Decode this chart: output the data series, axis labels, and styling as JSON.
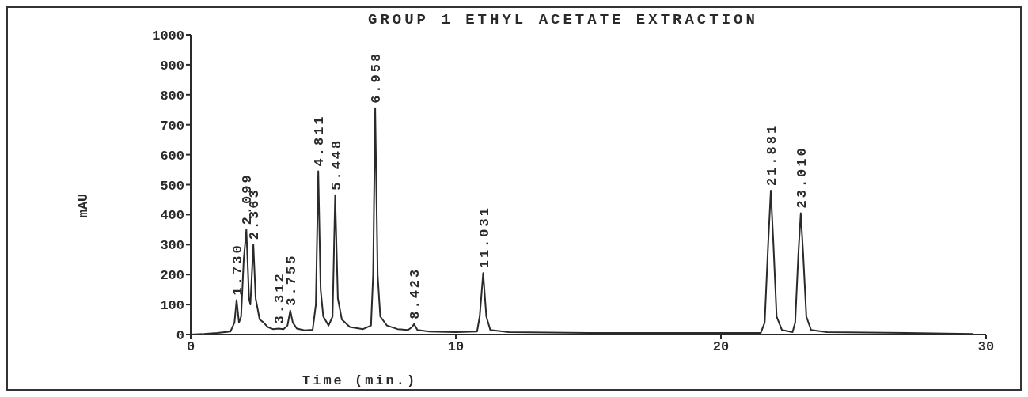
{
  "chart_data": {
    "type": "line",
    "title": "GROUP 1 ETHYL ACETATE EXTRACTION",
    "xlabel": "Time (min.)",
    "ylabel": "mAU",
    "xlim": [
      0,
      30
    ],
    "xticks": [
      0,
      10,
      20,
      30
    ],
    "ylim": [
      0,
      1000
    ],
    "yticks": [
      0,
      100,
      200,
      300,
      400,
      500,
      600,
      700,
      800,
      900,
      1000
    ],
    "grid": false,
    "legend": false,
    "marker": "none",
    "line_style": "solid",
    "series": [
      {
        "color": "#2a2a2a",
        "x": [
          0,
          0.5,
          1.0,
          1.5,
          1.65,
          1.73,
          1.82,
          1.9,
          2.0,
          2.099,
          2.2,
          2.25,
          2.363,
          2.45,
          2.6,
          2.75,
          2.9,
          3.1,
          3.312,
          3.5,
          3.65,
          3.755,
          3.85,
          4.0,
          4.3,
          4.6,
          4.72,
          4.811,
          4.9,
          5.0,
          5.2,
          5.35,
          5.448,
          5.55,
          5.7,
          6.0,
          6.5,
          6.8,
          6.88,
          6.958,
          7.05,
          7.15,
          7.4,
          7.8,
          8.2,
          8.35,
          8.423,
          8.55,
          9,
          10,
          10.8,
          10.9,
          11.031,
          11.15,
          11.3,
          12,
          15,
          20,
          21.5,
          21.65,
          21.78,
          21.881,
          21.98,
          22.1,
          22.3,
          22.7,
          22.8,
          22.92,
          23.01,
          23.1,
          23.22,
          23.4,
          24,
          27,
          29.5
        ],
        "values": [
          0,
          2,
          5,
          10,
          40,
          115,
          40,
          60,
          250,
          350,
          120,
          100,
          300,
          120,
          50,
          40,
          25,
          18,
          20,
          18,
          30,
          80,
          40,
          20,
          14,
          16,
          100,
          545,
          150,
          60,
          30,
          60,
          465,
          120,
          50,
          25,
          18,
          30,
          200,
          755,
          200,
          60,
          30,
          18,
          15,
          25,
          35,
          15,
          10,
          8,
          10,
          60,
          205,
          60,
          15,
          8,
          5,
          5,
          5,
          40,
          300,
          480,
          300,
          60,
          15,
          8,
          40,
          270,
          405,
          270,
          60,
          15,
          8,
          5,
          2
        ]
      }
    ],
    "annotations": [
      {
        "text": "1.730",
        "x": 1.73,
        "y": 115
      },
      {
        "text": "2.099",
        "x": 2.099,
        "y": 350
      },
      {
        "text": "2.363",
        "x": 2.363,
        "y": 300
      },
      {
        "text": "3.312",
        "x": 3.312,
        "y": 20
      },
      {
        "text": "3.755",
        "x": 3.755,
        "y": 80
      },
      {
        "text": "4.811",
        "x": 4.811,
        "y": 545
      },
      {
        "text": "5.448",
        "x": 5.448,
        "y": 465
      },
      {
        "text": "6.958",
        "x": 6.958,
        "y": 755
      },
      {
        "text": "8.423",
        "x": 8.423,
        "y": 35
      },
      {
        "text": "11.031",
        "x": 11.031,
        "y": 205
      },
      {
        "text": "21.881",
        "x": 21.881,
        "y": 480
      },
      {
        "text": "23.010",
        "x": 23.01,
        "y": 405
      }
    ]
  }
}
